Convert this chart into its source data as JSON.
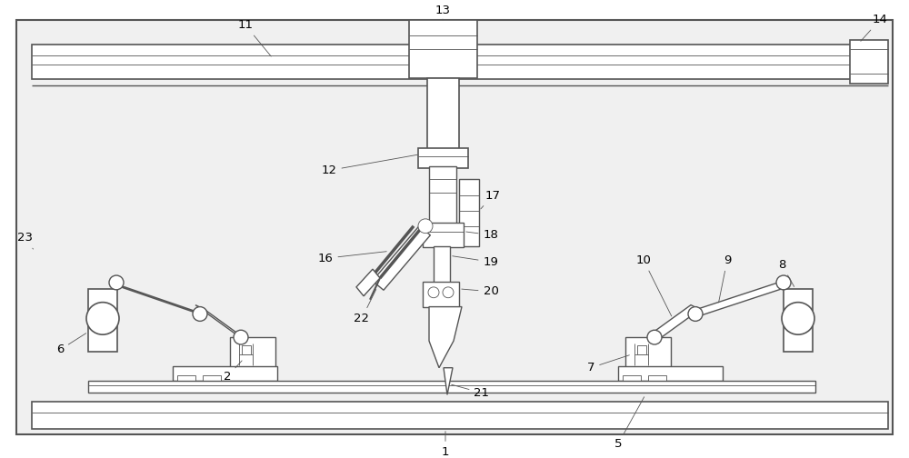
{
  "bg_color": "#ffffff",
  "lc": "#555555",
  "lw": 1.0,
  "tlw": 0.6,
  "fig_width": 10.0,
  "fig_height": 5.04,
  "font_size": 9.5
}
